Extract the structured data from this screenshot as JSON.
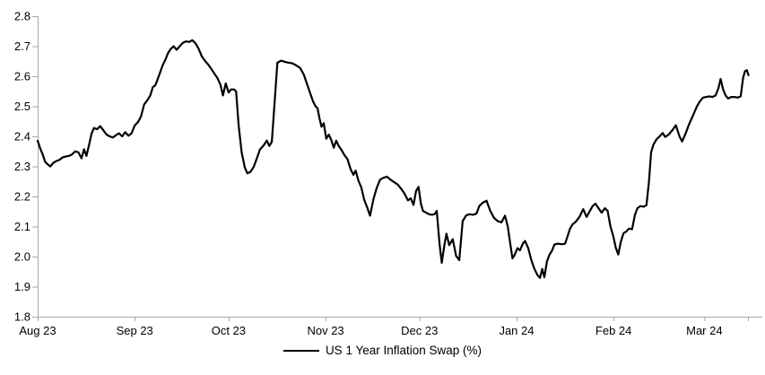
{
  "chart_data": {
    "type": "line",
    "title": "",
    "legend": {
      "label": "US 1 Year Inflation Swap (%)",
      "position": "bottom-center"
    },
    "colors": {
      "line": "#000000",
      "axis": "#a6a6a6",
      "text": "#000000",
      "background": "#ffffff"
    },
    "y_axis": {
      "min": 1.8,
      "max": 2.8,
      "step": 0.1,
      "tick_labels": [
        "1.8",
        "1.9",
        "2.0",
        "2.1",
        "2.2",
        "2.3",
        "2.4",
        "2.5",
        "2.6",
        "2.7",
        "2.8"
      ]
    },
    "x_axis": {
      "unit": "days_since_2023-08-01",
      "ticks": [
        {
          "day": 0,
          "label": "Aug 23"
        },
        {
          "day": 31,
          "label": "Sep 23"
        },
        {
          "day": 61,
          "label": "Oct 23"
        },
        {
          "day": 92,
          "label": "Nov 23"
        },
        {
          "day": 122,
          "label": "Dec 23"
        },
        {
          "day": 153,
          "label": "Jan 24"
        },
        {
          "day": 184,
          "label": "Feb 24"
        },
        {
          "day": 213,
          "label": "Mar 24"
        }
      ],
      "end_tick_day": 227
    },
    "series": [
      {
        "name": "US 1 Year Inflation Swap (%)",
        "color": "#000000",
        "points": [
          [
            0,
            2.385
          ],
          [
            0.8,
            2.36
          ],
          [
            1.6,
            2.34
          ],
          [
            2.4,
            2.315
          ],
          [
            3.2,
            2.307
          ],
          [
            4,
            2.3
          ],
          [
            5,
            2.312
          ],
          [
            6,
            2.318
          ],
          [
            7,
            2.322
          ],
          [
            8,
            2.33
          ],
          [
            9,
            2.333
          ],
          [
            10,
            2.335
          ],
          [
            11,
            2.34
          ],
          [
            12,
            2.35
          ],
          [
            13,
            2.347
          ],
          [
            14,
            2.327
          ],
          [
            14.8,
            2.357
          ],
          [
            15.6,
            2.335
          ],
          [
            16.4,
            2.37
          ],
          [
            17.2,
            2.408
          ],
          [
            18,
            2.428
          ],
          [
            19,
            2.424
          ],
          [
            20,
            2.434
          ],
          [
            21,
            2.42
          ],
          [
            22,
            2.406
          ],
          [
            23,
            2.4
          ],
          [
            24,
            2.396
          ],
          [
            25,
            2.404
          ],
          [
            26,
            2.41
          ],
          [
            27,
            2.4
          ],
          [
            28,
            2.414
          ],
          [
            29,
            2.402
          ],
          [
            30,
            2.41
          ],
          [
            31,
            2.436
          ],
          [
            32,
            2.447
          ],
          [
            33,
            2.466
          ],
          [
            34,
            2.506
          ],
          [
            35,
            2.52
          ],
          [
            36,
            2.536
          ],
          [
            36.8,
            2.564
          ],
          [
            37.6,
            2.57
          ],
          [
            38.4,
            2.592
          ],
          [
            39.2,
            2.615
          ],
          [
            40,
            2.638
          ],
          [
            40.8,
            2.655
          ],
          [
            41.6,
            2.676
          ],
          [
            42.4,
            2.69
          ],
          [
            43.4,
            2.7
          ],
          [
            44.4,
            2.688
          ],
          [
            45.4,
            2.7
          ],
          [
            46.4,
            2.711
          ],
          [
            47.4,
            2.716
          ],
          [
            48.4,
            2.714
          ],
          [
            49.4,
            2.72
          ],
          [
            50.4,
            2.71
          ],
          [
            51.4,
            2.692
          ],
          [
            52.4,
            2.667
          ],
          [
            53.4,
            2.652
          ],
          [
            54.4,
            2.64
          ],
          [
            55.4,
            2.626
          ],
          [
            56.4,
            2.61
          ],
          [
            57.4,
            2.595
          ],
          [
            58.4,
            2.572
          ],
          [
            59.2,
            2.536
          ],
          [
            60.1,
            2.576
          ],
          [
            61,
            2.546
          ],
          [
            61.8,
            2.556
          ],
          [
            62.8,
            2.556
          ],
          [
            63.4,
            2.549
          ],
          [
            64.2,
            2.436
          ],
          [
            65.2,
            2.346
          ],
          [
            66.2,
            2.296
          ],
          [
            67,
            2.277
          ],
          [
            68,
            2.282
          ],
          [
            69,
            2.298
          ],
          [
            70,
            2.326
          ],
          [
            71,
            2.356
          ],
          [
            72.2,
            2.37
          ],
          [
            73.2,
            2.386
          ],
          [
            74,
            2.368
          ],
          [
            74.8,
            2.382
          ],
          [
            75.6,
            2.496
          ],
          [
            76.6,
            2.645
          ],
          [
            77.8,
            2.652
          ],
          [
            79,
            2.648
          ],
          [
            80.2,
            2.645
          ],
          [
            81.4,
            2.643
          ],
          [
            82.6,
            2.636
          ],
          [
            83.8,
            2.628
          ],
          [
            85,
            2.606
          ],
          [
            86,
            2.576
          ],
          [
            87,
            2.546
          ],
          [
            88,
            2.516
          ],
          [
            88.8,
            2.5
          ],
          [
            89.4,
            2.494
          ],
          [
            90.1,
            2.458
          ],
          [
            90.7,
            2.432
          ],
          [
            91.4,
            2.444
          ],
          [
            92.2,
            2.392
          ],
          [
            93,
            2.406
          ],
          [
            93.8,
            2.388
          ],
          [
            94.6,
            2.362
          ],
          [
            95.4,
            2.386
          ],
          [
            96.2,
            2.368
          ],
          [
            97.1,
            2.354
          ],
          [
            98,
            2.338
          ],
          [
            99,
            2.324
          ],
          [
            100,
            2.29
          ],
          [
            100.9,
            2.272
          ],
          [
            101.6,
            2.286
          ],
          [
            102.5,
            2.252
          ],
          [
            103.4,
            2.23
          ],
          [
            104.3,
            2.19
          ],
          [
            105.2,
            2.166
          ],
          [
            106.2,
            2.136
          ],
          [
            107.3,
            2.192
          ],
          [
            108.3,
            2.228
          ],
          [
            109.4,
            2.256
          ],
          [
            110.5,
            2.262
          ],
          [
            111.6,
            2.266
          ],
          [
            112.7,
            2.256
          ],
          [
            113.8,
            2.248
          ],
          [
            115,
            2.24
          ],
          [
            116.1,
            2.226
          ],
          [
            117.2,
            2.21
          ],
          [
            118.3,
            2.187
          ],
          [
            119.2,
            2.194
          ],
          [
            120.1,
            2.172
          ],
          [
            120.9,
            2.218
          ],
          [
            121.7,
            2.232
          ],
          [
            122.4,
            2.178
          ],
          [
            123.1,
            2.152
          ],
          [
            124,
            2.147
          ],
          [
            125,
            2.141
          ],
          [
            126,
            2.139
          ],
          [
            126.9,
            2.142
          ],
          [
            127.5,
            2.152
          ],
          [
            128.4,
            2.042
          ],
          [
            129.1,
            1.979
          ],
          [
            129.9,
            2.036
          ],
          [
            130.6,
            2.076
          ],
          [
            131.5,
            2.038
          ],
          [
            132.6,
            2.058
          ],
          [
            133.7,
            2.002
          ],
          [
            134.7,
            1.988
          ],
          [
            135.8,
            2.118
          ],
          [
            136.9,
            2.137
          ],
          [
            138,
            2.141
          ],
          [
            139.1,
            2.139
          ],
          [
            140.2,
            2.143
          ],
          [
            141.1,
            2.168
          ],
          [
            142.2,
            2.179
          ],
          [
            143.4,
            2.186
          ],
          [
            144.6,
            2.152
          ],
          [
            145.8,
            2.129
          ],
          [
            147,
            2.118
          ],
          [
            148.2,
            2.114
          ],
          [
            149.3,
            2.136
          ],
          [
            150.2,
            2.1
          ],
          [
            151,
            2.042
          ],
          [
            151.7,
            1.994
          ],
          [
            152.4,
            2.006
          ],
          [
            153.3,
            2.028
          ],
          [
            154.1,
            2.021
          ],
          [
            155,
            2.043
          ],
          [
            155.7,
            2.052
          ],
          [
            156.7,
            2.029
          ],
          [
            157.7,
            1.989
          ],
          [
            158.7,
            1.959
          ],
          [
            159.7,
            1.938
          ],
          [
            160.5,
            1.929
          ],
          [
            161.2,
            1.959
          ],
          [
            161.9,
            1.931
          ],
          [
            162.7,
            1.983
          ],
          [
            163.5,
            2.006
          ],
          [
            164.3,
            2.019
          ],
          [
            165.1,
            2.04
          ],
          [
            166.3,
            2.043
          ],
          [
            167.5,
            2.041
          ],
          [
            168.5,
            2.043
          ],
          [
            169.3,
            2.068
          ],
          [
            170.1,
            2.093
          ],
          [
            170.9,
            2.107
          ],
          [
            172,
            2.117
          ],
          [
            173.1,
            2.132
          ],
          [
            174.3,
            2.158
          ],
          [
            175.4,
            2.132
          ],
          [
            176.4,
            2.151
          ],
          [
            177.3,
            2.168
          ],
          [
            178.2,
            2.176
          ],
          [
            179.2,
            2.161
          ],
          [
            180.2,
            2.146
          ],
          [
            181.2,
            2.161
          ],
          [
            182.1,
            2.152
          ],
          [
            183,
            2.1
          ],
          [
            183.9,
            2.068
          ],
          [
            184.7,
            2.03
          ],
          [
            185.5,
            2.007
          ],
          [
            186.3,
            2.049
          ],
          [
            187.2,
            2.078
          ],
          [
            188.1,
            2.084
          ],
          [
            188.9,
            2.093
          ],
          [
            189.9,
            2.091
          ],
          [
            190.8,
            2.138
          ],
          [
            191.6,
            2.161
          ],
          [
            192.6,
            2.168
          ],
          [
            193.6,
            2.166
          ],
          [
            194.5,
            2.171
          ],
          [
            195.3,
            2.249
          ],
          [
            196,
            2.347
          ],
          [
            196.7,
            2.372
          ],
          [
            197.7,
            2.39
          ],
          [
            198.7,
            2.4
          ],
          [
            199.7,
            2.411
          ],
          [
            200.5,
            2.398
          ],
          [
            201.6,
            2.406
          ],
          [
            202.8,
            2.421
          ],
          [
            203.9,
            2.437
          ],
          [
            205,
            2.401
          ],
          [
            205.9,
            2.383
          ],
          [
            206.9,
            2.407
          ],
          [
            208,
            2.437
          ],
          [
            209.4,
            2.47
          ],
          [
            210.7,
            2.501
          ],
          [
            211.6,
            2.517
          ],
          [
            212.6,
            2.529
          ],
          [
            213.6,
            2.531
          ],
          [
            214.6,
            2.533
          ],
          [
            215.6,
            2.531
          ],
          [
            216.6,
            2.536
          ],
          [
            217.5,
            2.561
          ],
          [
            218.2,
            2.591
          ],
          [
            219,
            2.556
          ],
          [
            219.8,
            2.536
          ],
          [
            220.6,
            2.526
          ],
          [
            221.6,
            2.531
          ],
          [
            222.6,
            2.531
          ],
          [
            223.6,
            2.529
          ],
          [
            224.6,
            2.533
          ],
          [
            225.4,
            2.595
          ],
          [
            226,
            2.617
          ],
          [
            226.6,
            2.62
          ],
          [
            227.1,
            2.604
          ]
        ]
      }
    ]
  }
}
